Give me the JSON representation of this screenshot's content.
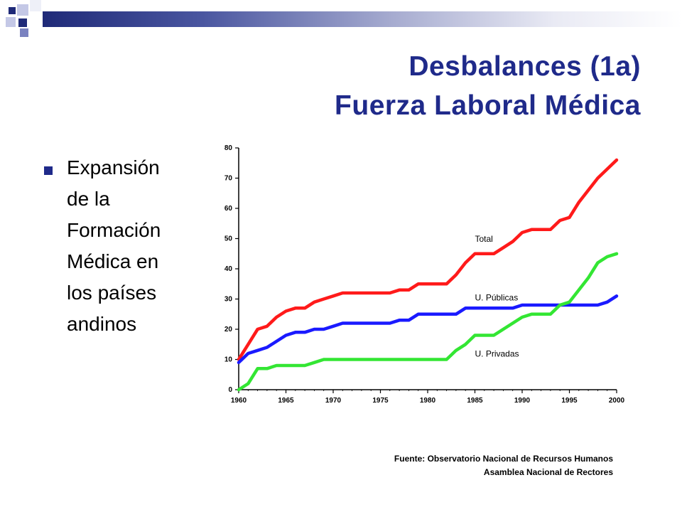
{
  "slide": {
    "title_line1": "Desbalances (1a)",
    "title_line2": "Fuerza Laboral Médica",
    "bullet": "Expansión\nde la\nFormación\nMédica en\nlos países\nandinos",
    "source_line1": "Fuente: Observatorio Nacional de Recursos Humanos",
    "source_line2": "Asamblea Nacional de Rectores",
    "accent_color": "#1f2a8a"
  },
  "chart_data": {
    "type": "line",
    "title": "",
    "xlabel": "",
    "ylabel": "",
    "xlim": [
      1960,
      2000
    ],
    "ylim": [
      0,
      80
    ],
    "xticks": [
      1960,
      1965,
      1970,
      1975,
      1980,
      1985,
      1990,
      1995,
      2000
    ],
    "yticks": [
      0,
      10,
      20,
      30,
      40,
      50,
      60,
      70,
      80
    ],
    "grid": false,
    "x": [
      1960,
      1961,
      1962,
      1963,
      1964,
      1965,
      1966,
      1967,
      1968,
      1969,
      1970,
      1971,
      1972,
      1973,
      1974,
      1975,
      1976,
      1977,
      1978,
      1979,
      1980,
      1981,
      1982,
      1983,
      1984,
      1985,
      1986,
      1987,
      1988,
      1989,
      1990,
      1991,
      1992,
      1993,
      1994,
      1995,
      1996,
      1997,
      1998,
      1999,
      2000
    ],
    "series": [
      {
        "name": "Total",
        "color": "#ff1a1a",
        "values": [
          10,
          15,
          20,
          21,
          24,
          26,
          27,
          27,
          29,
          30,
          31,
          32,
          32,
          32,
          32,
          32,
          32,
          33,
          33,
          35,
          35,
          35,
          35,
          38,
          42,
          45,
          45,
          45,
          47,
          49,
          52,
          53,
          53,
          53,
          56,
          57,
          62,
          66,
          70,
          73,
          76
        ]
      },
      {
        "name": "U. Públicas",
        "color": "#1a1aff",
        "values": [
          9,
          12,
          13,
          14,
          16,
          18,
          19,
          19,
          20,
          20,
          21,
          22,
          22,
          22,
          22,
          22,
          22,
          23,
          23,
          25,
          25,
          25,
          25,
          25,
          27,
          27,
          27,
          27,
          27,
          27,
          28,
          28,
          28,
          28,
          28,
          28,
          28,
          28,
          28,
          29,
          31
        ]
      },
      {
        "name": "U. Privadas",
        "color": "#33e633",
        "values": [
          0,
          2,
          7,
          7,
          8,
          8,
          8,
          8,
          9,
          10,
          10,
          10,
          10,
          10,
          10,
          10,
          10,
          10,
          10,
          10,
          10,
          10,
          10,
          13,
          15,
          18,
          18,
          18,
          20,
          22,
          24,
          25,
          25,
          25,
          28,
          29,
          33,
          37,
          42,
          44,
          45
        ]
      }
    ],
    "legend": "inline labels"
  }
}
